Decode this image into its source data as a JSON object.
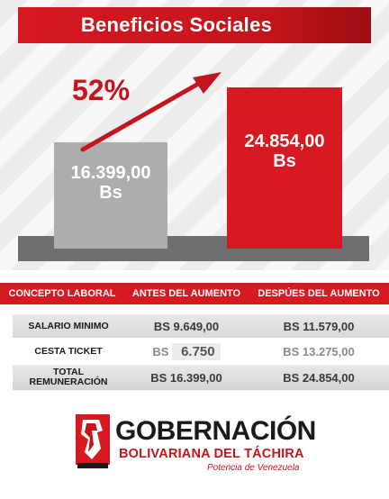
{
  "title": "Beneficios Sociales",
  "chart_data": {
    "type": "bar",
    "categories": [
      "ANTES DEL AUMENTO",
      "DESPÚES DEL AUMENTO"
    ],
    "values": [
      16399.0,
      24854.0
    ],
    "value_labels": [
      "16.399,00 Bs",
      "24.854,00 Bs"
    ],
    "colors": [
      "#adadad",
      "#d71921"
    ],
    "annotation": "52%",
    "ylim": [
      0,
      30000
    ]
  },
  "table": {
    "headers": [
      "CONCEPTO LABORAL",
      "ANTES DEL AUMENTO",
      "DESPÚES DEL AUMENTO"
    ],
    "rows": [
      {
        "label": "SALARIO MINIMO",
        "before": "BS 9.649,00",
        "after": "BS 11.579,00"
      },
      {
        "label_line1": "CESTA TICKET",
        "before_prefix": "BS",
        "before_value": "6.750",
        "after": "BS 13.275,00"
      },
      {
        "label_line1": "TOTAL",
        "label_line2": "REMUNERACIÓN",
        "before": "BS 16.399,00",
        "after": "BS 24.854,00"
      }
    ]
  },
  "logo": {
    "main": "GOBERNACIÓN",
    "sub": "BOLIVARIANA DEL TÁCHIRA",
    "tagline": "Potencia de Venezuela"
  }
}
